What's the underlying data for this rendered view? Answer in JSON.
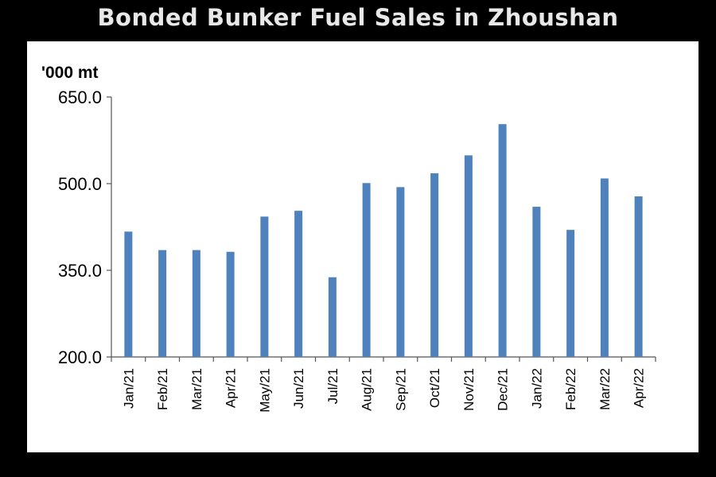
{
  "chart_data": {
    "type": "bar",
    "title": "Bonded Bunker Fuel Sales in Zhoushan",
    "unit_label": "'000 mt",
    "xlabel": "",
    "ylabel": "",
    "ylim": [
      200,
      650
    ],
    "yticks": [
      "650.0",
      "500.0",
      "350.0",
      "200.0"
    ],
    "ytick_values": [
      650,
      500,
      350,
      200
    ],
    "categories": [
      "Jan/21",
      "Feb/21",
      "Mar/21",
      "Apr/21",
      "May/21",
      "Jun/21",
      "Jul/21",
      "Aug/21",
      "Sep/21",
      "Oct/21",
      "Nov/21",
      "Dec/21",
      "Jan/22",
      "Feb/22",
      "Mar/22",
      "Apr/22"
    ],
    "values": [
      417,
      385,
      385,
      382,
      443,
      453,
      338,
      501,
      494,
      518,
      549,
      603,
      460,
      420,
      509,
      478
    ],
    "bar_color": "#4f81bd",
    "grid": false,
    "legend": "none"
  }
}
